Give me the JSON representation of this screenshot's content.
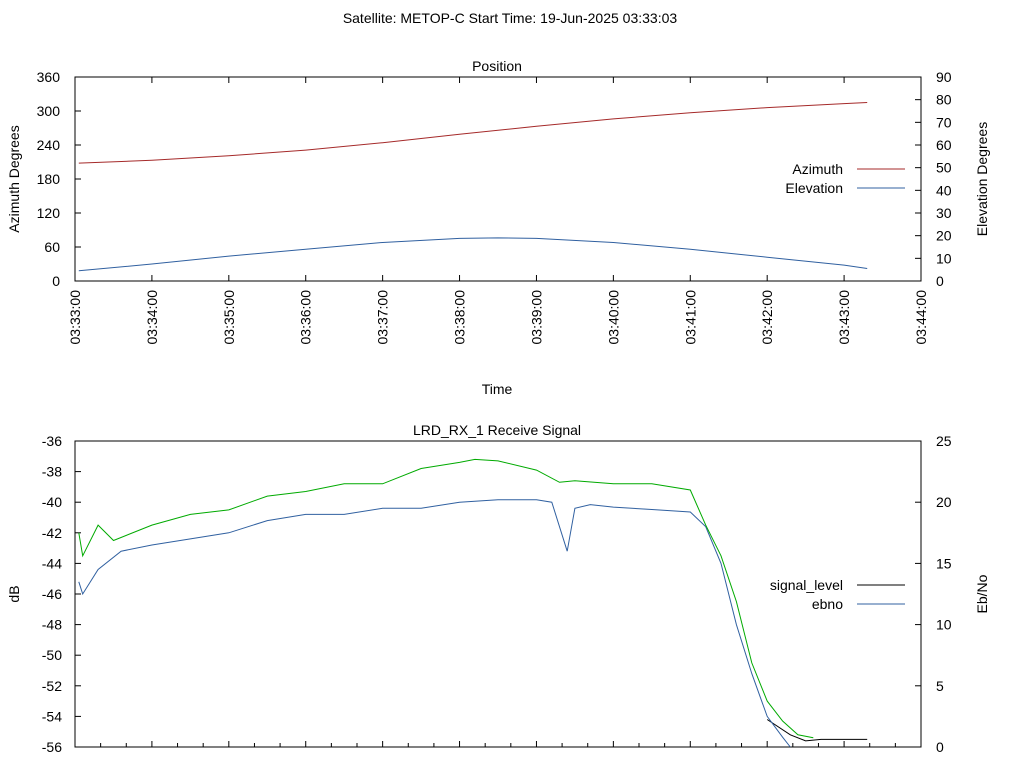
{
  "header": {
    "title": "Satellite: METOP-C    Start Time: 19-Jun-2025 03:33:03"
  },
  "colors": {
    "azimuth": "#a52a2a",
    "elevation": "#3060a0",
    "signal_level": "#000000",
    "ebno": "#3060a0",
    "green_trace": "#00aa00",
    "frame": "#000000",
    "background": "#ffffff"
  },
  "chart_data": [
    {
      "type": "line",
      "title": "Position",
      "xlabel": "Time",
      "ylabel": "Azimuth Degrees",
      "y2label": "Elevation Degrees",
      "grid": false,
      "legend_position": "right",
      "x_tick_labels": [
        "03:33:00",
        "03:34:00",
        "03:35:00",
        "03:36:00",
        "03:37:00",
        "03:38:00",
        "03:39:00",
        "03:40:00",
        "03:41:00",
        "03:42:00",
        "03:43:00",
        "03:44:00"
      ],
      "xlim_minutes": [
        0,
        11
      ],
      "ylim": [
        0,
        360
      ],
      "y_ticks": [
        0,
        60,
        120,
        180,
        240,
        300,
        360
      ],
      "y2lim": [
        0,
        90
      ],
      "y2_ticks": [
        0,
        10,
        20,
        30,
        40,
        50,
        60,
        70,
        80,
        90
      ],
      "series": [
        {
          "name": "Azimuth",
          "axis": "y1",
          "color": "#a52a2a",
          "x_minutes": [
            0.05,
            1,
            2,
            3,
            4,
            5,
            6,
            7,
            8,
            9,
            10,
            10.3
          ],
          "values": [
            208,
            213,
            221,
            231,
            244,
            259,
            273,
            286,
            297,
            306,
            313,
            315
          ]
        },
        {
          "name": "Elevation",
          "axis": "y2",
          "color": "#3060a0",
          "x_minutes": [
            0.05,
            1,
            2,
            3,
            4,
            5,
            5.5,
            6,
            7,
            8,
            9,
            10,
            10.3
          ],
          "values": [
            4.5,
            7.5,
            11,
            14,
            17,
            18.8,
            19,
            18.8,
            17,
            14,
            10.5,
            7,
            5.5
          ]
        }
      ]
    },
    {
      "type": "line",
      "title": "LRD_RX_1 Receive Signal",
      "ylabel": "dB",
      "y2label": "Eb/No",
      "grid": false,
      "legend_position": "right",
      "ylim": [
        -56,
        -36
      ],
      "y_ticks": [
        -56,
        -54,
        -52,
        -50,
        -48,
        -46,
        -44,
        -42,
        -40,
        -38,
        -36
      ],
      "y2lim": [
        0,
        25
      ],
      "y2_ticks": [
        0,
        5,
        10,
        15,
        20,
        25
      ],
      "xlim_minutes": [
        0,
        11
      ],
      "series": [
        {
          "name": "signal_level",
          "axis": "y1",
          "color": "#000000",
          "x_minutes": [
            9.0,
            9.3,
            9.5,
            9.7,
            10.0,
            10.3
          ],
          "values": [
            -54.2,
            -55.2,
            -55.6,
            -55.5,
            -55.5,
            -55.5
          ]
        },
        {
          "name": "ebno",
          "axis": "y2",
          "color": "#3060a0",
          "x_minutes": [
            0.05,
            0.1,
            0.3,
            0.6,
            1,
            1.5,
            2,
            2.5,
            3,
            3.5,
            4,
            4.5,
            5,
            5.5,
            6,
            6.2,
            6.4,
            6.5,
            6.7,
            7,
            7.5,
            8,
            8.2,
            8.4,
            8.6,
            8.8,
            9.0,
            9.2,
            9.3
          ],
          "values": [
            13.5,
            12.5,
            14.5,
            16,
            16.5,
            17,
            17.5,
            18.5,
            19,
            19,
            19.5,
            19.5,
            20,
            20.2,
            20.2,
            20,
            16,
            19.5,
            19.8,
            19.6,
            19.4,
            19.2,
            18,
            15,
            10,
            6,
            2.5,
            0.8,
            0
          ]
        },
        {
          "name": "",
          "axis": "y1",
          "color": "#00aa00",
          "x_minutes": [
            0.05,
            0.1,
            0.3,
            0.5,
            1,
            1.5,
            2,
            2.5,
            3,
            3.5,
            4,
            4.5,
            5,
            5.2,
            5.5,
            6,
            6.3,
            6.5,
            7,
            7.5,
            8,
            8.2,
            8.4,
            8.6,
            8.8,
            9.0,
            9.2,
            9.4,
            9.6
          ],
          "values": [
            -42,
            -43.5,
            -41.5,
            -42.5,
            -41.5,
            -40.8,
            -40.5,
            -39.6,
            -39.3,
            -38.8,
            -38.8,
            -37.8,
            -37.4,
            -37.2,
            -37.3,
            -37.9,
            -38.7,
            -38.6,
            -38.8,
            -38.8,
            -39.2,
            -41.5,
            -43.5,
            -46.5,
            -50.5,
            -53,
            -54.3,
            -55.2,
            -55.4
          ]
        }
      ]
    }
  ]
}
